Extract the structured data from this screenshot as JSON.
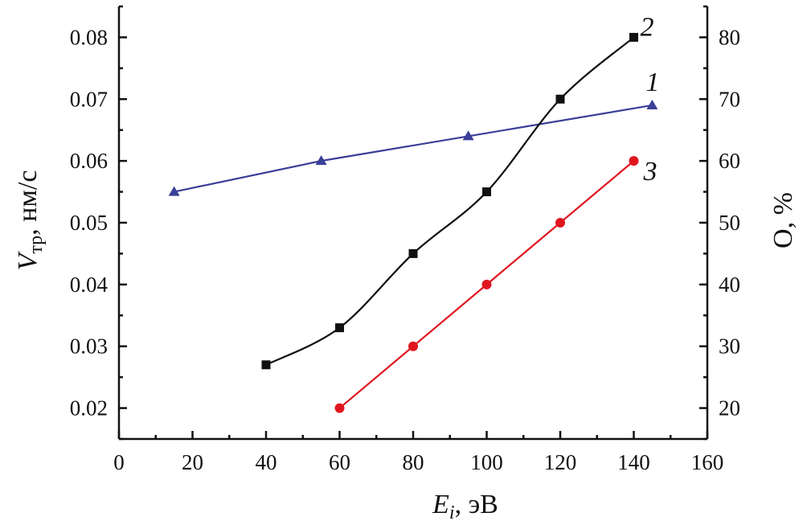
{
  "chart_data": {
    "type": "line",
    "title": "",
    "xlabel": {
      "main": "E",
      "sub": "i",
      "rest": ", эВ"
    },
    "ylabel_left": {
      "main": "V",
      "sub": "тр",
      "rest": ", нм/с"
    },
    "ylabel_right": "O, %",
    "xlim": [
      0,
      160
    ],
    "ylim_left": [
      0.015,
      0.085
    ],
    "ylim_right": [
      15,
      85
    ],
    "x_ticks": [
      "0",
      "20",
      "40",
      "60",
      "80",
      "100",
      "120",
      "140",
      "160"
    ],
    "y_left_ticks": [
      "0.02",
      "0.03",
      "0.04",
      "0.05",
      "0.06",
      "0.07",
      "0.08"
    ],
    "y_right_ticks": [
      "20",
      "30",
      "40",
      "50",
      "60",
      "70",
      "80"
    ],
    "series": [
      {
        "name": "1",
        "label": "1",
        "axis": "right",
        "color": "#3a3f98",
        "marker": "triangle",
        "x": [
          15,
          55,
          95,
          145
        ],
        "y": [
          55,
          60,
          64,
          69
        ]
      },
      {
        "name": "2",
        "label": "2",
        "axis": "left",
        "color": "#111111",
        "marker": "square",
        "x": [
          40,
          60,
          80,
          100,
          120,
          140
        ],
        "y": [
          0.027,
          0.033,
          0.045,
          0.055,
          0.07,
          0.08
        ]
      },
      {
        "name": "3",
        "label": "3",
        "axis": "right",
        "color": "#e0161f",
        "marker": "circle",
        "x": [
          60,
          80,
          100,
          120,
          140
        ],
        "y": [
          20,
          30,
          40,
          50,
          60
        ]
      }
    ]
  }
}
